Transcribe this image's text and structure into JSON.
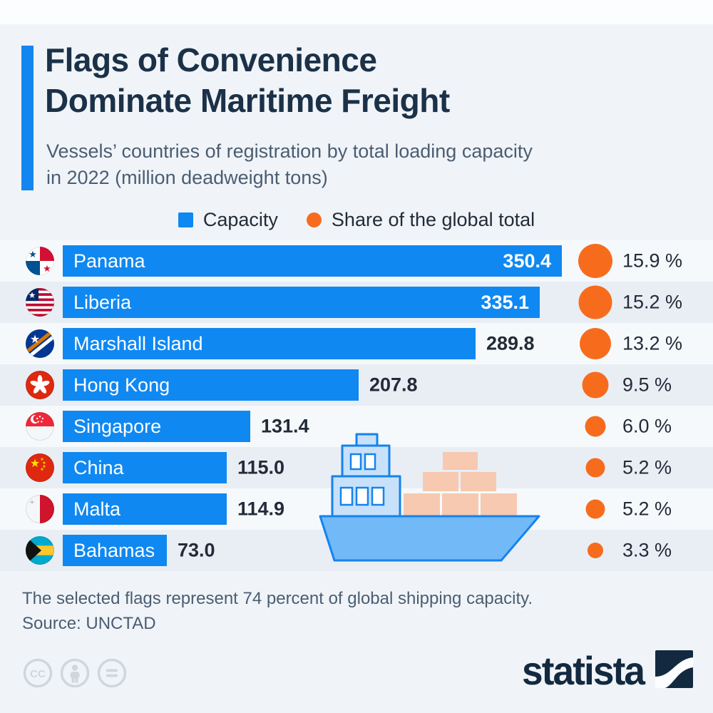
{
  "header": {
    "title_line1": "Flags of Convenience",
    "title_line2": "Dominate Maritime Freight",
    "subtitle_line1": "Vessels’ countries of registration by total loading capacity",
    "subtitle_line2": "in 2022 (million deadweight tons)"
  },
  "legend": {
    "capacity_label": "Capacity",
    "share_label": "Share of the global total"
  },
  "chart_data": {
    "type": "bar",
    "orientation": "horizontal",
    "title": "Flags of Convenience Dominate Maritime Freight",
    "subtitle": "Vessels’ countries of registration by total loading capacity in 2022 (million deadweight tons)",
    "unit": "million deadweight tons",
    "xlim": [
      0,
      350.4
    ],
    "grid": false,
    "legend_position": "top-center",
    "legend_entries": [
      "Capacity",
      "Share of the global total"
    ],
    "categories": [
      "Panama",
      "Liberia",
      "Marshall Island",
      "Hong Kong",
      "Singapore",
      "China",
      "Malta",
      "Bahamas"
    ],
    "series": [
      {
        "name": "Capacity",
        "unit": "million dwt",
        "values": [
          350.4,
          335.1,
          289.8,
          207.8,
          131.4,
          115.0,
          114.9,
          73.0
        ]
      },
      {
        "name": "Share of the global total",
        "unit": "%",
        "values": [
          15.9,
          15.2,
          13.2,
          9.5,
          6.0,
          5.2,
          5.2,
          3.3
        ]
      }
    ],
    "rows": [
      {
        "country": "Panama",
        "flag": "panama",
        "capacity": 350.4,
        "capacity_label": "350.4",
        "share": 15.9,
        "share_label": "15.9 %"
      },
      {
        "country": "Liberia",
        "flag": "liberia",
        "capacity": 335.1,
        "capacity_label": "335.1",
        "share": 15.2,
        "share_label": "15.2 %"
      },
      {
        "country": "Marshall Island",
        "flag": "marshall",
        "capacity": 289.8,
        "capacity_label": "289.8",
        "share": 13.2,
        "share_label": "13.2 %"
      },
      {
        "country": "Hong Kong",
        "flag": "hongkong",
        "capacity": 207.8,
        "capacity_label": "207.8",
        "share": 9.5,
        "share_label": "9.5 %"
      },
      {
        "country": "Singapore",
        "flag": "singapore",
        "capacity": 131.4,
        "capacity_label": "131.4",
        "share": 6.0,
        "share_label": "6.0 %"
      },
      {
        "country": "China",
        "flag": "china",
        "capacity": 115.0,
        "capacity_label": "115.0",
        "share": 5.2,
        "share_label": "5.2 %"
      },
      {
        "country": "Malta",
        "flag": "malta",
        "capacity": 114.9,
        "capacity_label": "114.9",
        "share": 5.2,
        "share_label": "5.2 %"
      },
      {
        "country": "Bahamas",
        "flag": "bahamas",
        "capacity": 73.0,
        "capacity_label": "73.0",
        "share": 3.3,
        "share_label": "3.3 %"
      }
    ]
  },
  "footer": {
    "note": "The selected flags represent 74 percent of global shipping capacity.",
    "source": "Source: UNCTAD",
    "brand": "statista"
  },
  "colors": {
    "bar_blue": "#0f88f2",
    "dot_orange": "#f76c1c",
    "background": "#f0f4f8",
    "row_light": "#f6f9fc",
    "row_dark": "#e9eef5",
    "title_navy": "#1b3148",
    "text_gray": "#4b5d72",
    "value_dark": "#232b38",
    "brand_navy": "#13293f"
  }
}
